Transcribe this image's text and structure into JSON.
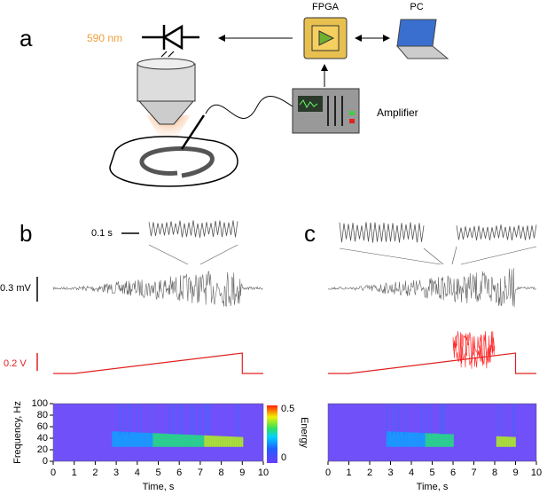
{
  "panels": {
    "a": {
      "label": "a",
      "light": "590 nm",
      "fpga": "FPGA",
      "pc": "PC",
      "amplifier": "Amplifier"
    },
    "b": {
      "label": "b",
      "timescale": "0.1 s",
      "voltage": "0.3 mV",
      "stim": "0.2 V"
    },
    "c": {
      "label": "c"
    }
  },
  "spectrogram": {
    "xlabel": "Time, s",
    "ylabel": "Frequency, Hz",
    "xlim": [
      0,
      10
    ],
    "ylim": [
      0,
      100
    ],
    "xticks": [
      0,
      1,
      2,
      3,
      4,
      5,
      6,
      7,
      8,
      9,
      10
    ],
    "yticks": [
      0,
      20,
      40,
      60,
      80,
      100
    ],
    "colorbar": {
      "label": "Energy",
      "ticks": [
        0,
        0.5
      ]
    }
  }
}
